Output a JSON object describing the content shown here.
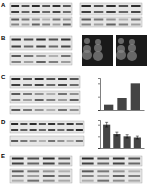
{
  "panels": [
    {
      "label": "A"
    },
    {
      "label": "B"
    },
    {
      "label": "C"
    },
    {
      "label": "D"
    },
    {
      "label": "E"
    }
  ],
  "chart_data": [
    {
      "type": "bar",
      "categories": [
        null,
        null,
        null
      ],
      "values": [
        0.2,
        0.45,
        1.0
      ],
      "color": "#444444",
      "ylim": [
        0,
        1.2
      ],
      "yticks": [
        0,
        0.5,
        1
      ],
      "tick_labels": false
    },
    {
      "type": "bar",
      "categories": [
        null,
        null,
        null,
        null
      ],
      "values": [
        1.0,
        0.6,
        0.5,
        0.45
      ],
      "errors": [
        0.1,
        0.08,
        0.07,
        0.06
      ],
      "color": "#444444",
      "ylim": [
        0,
        1.2
      ],
      "yticks": [
        0,
        0.5,
        1
      ],
      "tick_labels": false
    }
  ]
}
